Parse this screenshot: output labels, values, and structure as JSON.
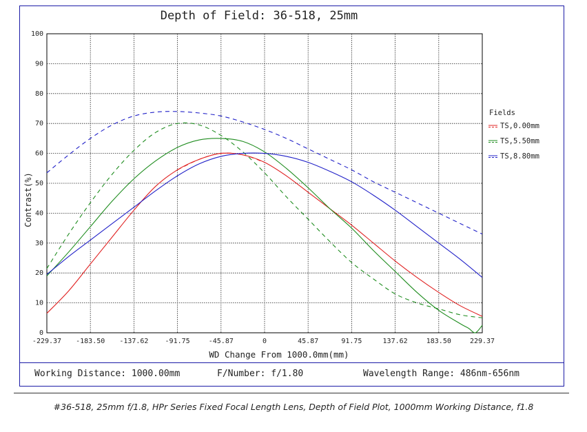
{
  "info": {
    "working_distance": "Working Distance: 1000.00mm",
    "f_number": "F/Number: f/1.80",
    "wavelength": "Wavelength Range: 486nm-656nm"
  },
  "caption": "#36-518, 25mm f/1.8, HPr Series Fixed Focal Length Lens, Depth of Field Plot, 1000mm Working Distance, f1.8",
  "chart_data": {
    "type": "line",
    "title": "Depth of Field: 36-518, 25mm",
    "xlabel": "WD Change From 1000.0mm(mm)",
    "ylabel": "Contrast(%)",
    "xlim": [
      -229.37,
      229.37
    ],
    "ylim": [
      0,
      100
    ],
    "xticks": [
      -229.37,
      -183.5,
      -137.62,
      -91.75,
      -45.87,
      0,
      45.87,
      91.75,
      137.62,
      183.5,
      229.37
    ],
    "xtick_labels": [
      "-229.37",
      "-183.50",
      "-137.62",
      "-91.75",
      "-45.87",
      "0",
      "45.87",
      "91.75",
      "137.62",
      "183.50",
      "229.37"
    ],
    "yticks": [
      0,
      10,
      20,
      30,
      40,
      50,
      60,
      70,
      80,
      90,
      100
    ],
    "ytick_labels": [
      "0",
      "10",
      "20",
      "30",
      "40",
      "50",
      "60",
      "70",
      "80",
      "90",
      "100"
    ],
    "grid": true,
    "legend_title": "Fields",
    "legend_position": "right",
    "legend": [
      {
        "label": "TS,0.00mm",
        "color": "#e02020"
      },
      {
        "label": "TS,5.50mm",
        "color": "#1e8c1e"
      },
      {
        "label": "TS,8.80mm",
        "color": "#2020c8"
      }
    ],
    "series": [
      {
        "field": "0.00mm",
        "style": "solid",
        "color": "#e02020",
        "x": [
          -229.37,
          -206.4,
          -183.5,
          -160.6,
          -137.62,
          -114.7,
          -91.75,
          -68.8,
          -45.87,
          -22.9,
          0,
          22.9,
          45.87,
          68.8,
          91.75,
          114.7,
          137.62,
          160.6,
          183.5,
          206.4,
          229.37
        ],
        "y": [
          6.5,
          14,
          23,
          32,
          41,
          49,
          54.5,
          58,
          60,
          59.5,
          57,
          52.5,
          47,
          41.5,
          36,
          30,
          24,
          18.5,
          13.5,
          9,
          5.5
        ]
      },
      {
        "field": "0.00mm",
        "style": "dashed",
        "color": "#e02020",
        "x": [
          -91.75,
          -68.8,
          -45.87,
          -22.9,
          0
        ],
        "y": [
          54.5,
          58,
          60,
          59.5,
          57
        ]
      },
      {
        "field": "5.50mm",
        "style": "solid",
        "color": "#1e8c1e",
        "x": [
          -229.37,
          -206.4,
          -183.5,
          -160.6,
          -137.62,
          -114.7,
          -91.75,
          -68.8,
          -45.87,
          -22.9,
          0,
          22.9,
          45.87,
          68.8,
          91.75,
          114.7,
          137.62,
          160.6,
          183.5,
          206.4,
          215,
          222,
          229.37
        ],
        "y": [
          19,
          27,
          35.5,
          44,
          51.5,
          57.5,
          62,
          64.5,
          65,
          64,
          60.5,
          55,
          48.5,
          41.5,
          35,
          27.5,
          20.5,
          13.5,
          7.5,
          3,
          1.5,
          0,
          2.5
        ]
      },
      {
        "field": "5.50mm",
        "style": "dashed",
        "color": "#1e8c1e",
        "x": [
          -229.37,
          -206.4,
          -183.5,
          -160.6,
          -137.62,
          -114.7,
          -91.75,
          -68.8,
          -45.87,
          -22.9,
          0,
          22.9,
          45.87,
          68.8,
          91.75,
          114.7,
          137.62,
          160.6,
          183.5,
          206.4,
          229.37
        ],
        "y": [
          21.5,
          33,
          43.5,
          53,
          61,
          67,
          70,
          69.5,
          66,
          60.5,
          53.5,
          45.5,
          38,
          30.5,
          23.5,
          18,
          13,
          10,
          8,
          6,
          5
        ]
      },
      {
        "field": "8.80mm",
        "style": "solid",
        "color": "#2020c8",
        "x": [
          -229.37,
          -206.4,
          -183.5,
          -160.6,
          -137.62,
          -114.7,
          -91.75,
          -68.8,
          -45.87,
          -22.9,
          0,
          22.9,
          45.87,
          68.8,
          91.75,
          114.7,
          137.62,
          160.6,
          183.5,
          206.4,
          229.37
        ],
        "y": [
          19.5,
          25.5,
          31,
          36.5,
          42,
          47.5,
          52.5,
          56.5,
          59,
          60,
          60,
          59,
          57,
          54,
          50.5,
          46,
          41,
          35.5,
          30,
          24.5,
          18.5
        ]
      },
      {
        "field": "8.80mm",
        "style": "dashed",
        "color": "#2020c8",
        "x": [
          -229.37,
          -206.4,
          -183.5,
          -160.6,
          -137.62,
          -114.7,
          -91.75,
          -68.8,
          -45.87,
          -22.9,
          0,
          22.9,
          45.87,
          68.8,
          91.75,
          114.7,
          137.62,
          160.6,
          183.5,
          206.4,
          229.37
        ],
        "y": [
          53.5,
          59.5,
          65,
          69.5,
          72.5,
          73.8,
          74,
          73.5,
          72.5,
          70.5,
          68,
          65,
          61.5,
          58,
          54.5,
          50.5,
          47,
          43.5,
          40,
          36.5,
          33
        ]
      }
    ]
  }
}
